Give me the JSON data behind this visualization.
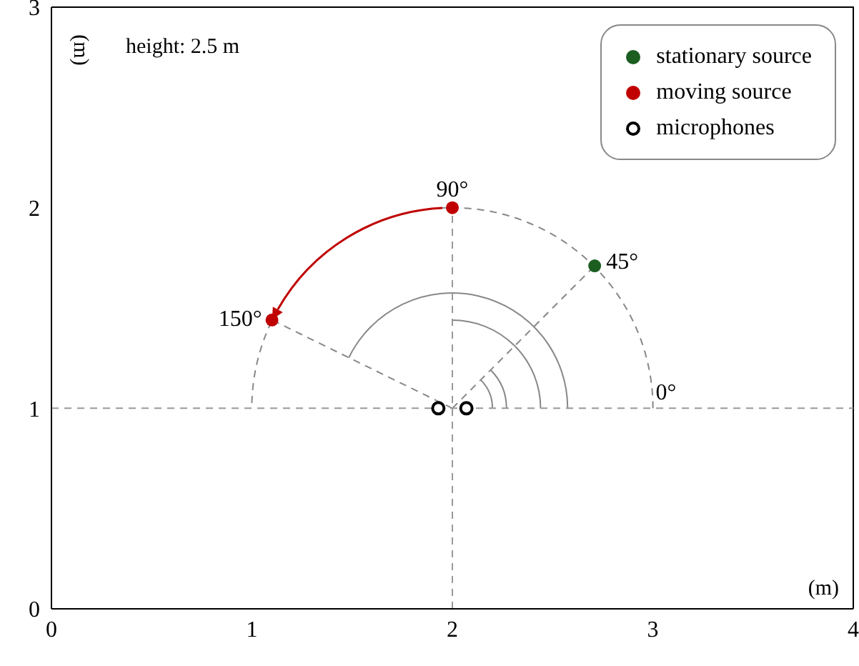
{
  "chart_data": {
    "type": "scatter",
    "xlim": [
      0,
      4
    ],
    "xticks": [
      0,
      1,
      2,
      3,
      4
    ],
    "ylim": [
      0,
      3
    ],
    "yticks": [
      0,
      1,
      2,
      3
    ],
    "series": [
      {
        "name": "stationary source",
        "color": "#1b5e20",
        "x": [
          2.71
        ],
        "values": [
          1.71
        ]
      },
      {
        "name": "moving source",
        "color": "#c00000",
        "x": [
          2,
          1.1
        ],
        "values": [
          2,
          1.44
        ]
      },
      {
        "name": "microphones",
        "color": "#000000",
        "x": [
          1.93,
          2.07
        ],
        "values": [
          1,
          1
        ]
      }
    ],
    "ref_lines": [
      {
        "axis": "y",
        "value": 1,
        "color": "#999999",
        "line_style": "dashed"
      },
      {
        "axis": "x",
        "value": 2,
        "color": "#999999",
        "line_style": "dashed"
      }
    ],
    "annotations": [
      "height: 2.5 m",
      {
        "text": "90°",
        "x": 2,
        "y": 2
      },
      {
        "text": "45°",
        "x": 2.71,
        "y": 1.71
      },
      {
        "text": "150°",
        "x": 1.1,
        "y": 1.44
      },
      {
        "text": "0°",
        "x": 3,
        "y": 1
      },
      "(m)",
      "(m)"
    ],
    "grid": false,
    "legend": "top right",
    "marker": "circle"
  }
}
